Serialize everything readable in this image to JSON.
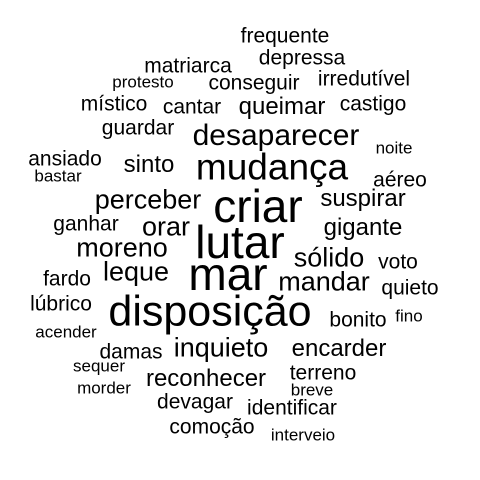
{
  "cloud": {
    "text_color": "#000000",
    "background": "#ffffff",
    "words": {
      "frequente": "frequente",
      "depressa": "depressa",
      "matriarca": "matriarca",
      "protesto": "protesto",
      "conseguir": "conseguir",
      "irredutivel": "irredutível",
      "mistico": "místico",
      "cantar": "cantar",
      "queimar": "queimar",
      "castigo": "castigo",
      "guardar": "guardar",
      "desaparecer": "desaparecer",
      "noite": "noite",
      "ansiado": "ansiado",
      "bastar": "bastar",
      "sinto": "sinto",
      "mudanca": "mudança",
      "aereo": "aéreo",
      "perceber": "perceber",
      "criar": "criar",
      "suspirar": "suspirar",
      "ganhar": "ganhar",
      "orar": "orar",
      "gigante": "gigante",
      "moreno": "moreno",
      "lutar": "lutar",
      "solido": "sólido",
      "voto": "voto",
      "fardo": "fardo",
      "leque": "leque",
      "mar": "mar",
      "mandar": "mandar",
      "quieto": "quieto",
      "lubrico": "lúbrico",
      "disposicao": "disposição",
      "bonito": "bonito",
      "fino": "fino",
      "acender": "acender",
      "damas": "damas",
      "inquieto": "inquieto",
      "encarder": "encarder",
      "sequer": "sequer",
      "terreno": "terreno",
      "morder": "morder",
      "reconhecer": "reconhecer",
      "breve": "breve",
      "devagar": "devagar",
      "identificar": "identificar",
      "comocao": "comoção",
      "interveio": "interveio"
    }
  }
}
